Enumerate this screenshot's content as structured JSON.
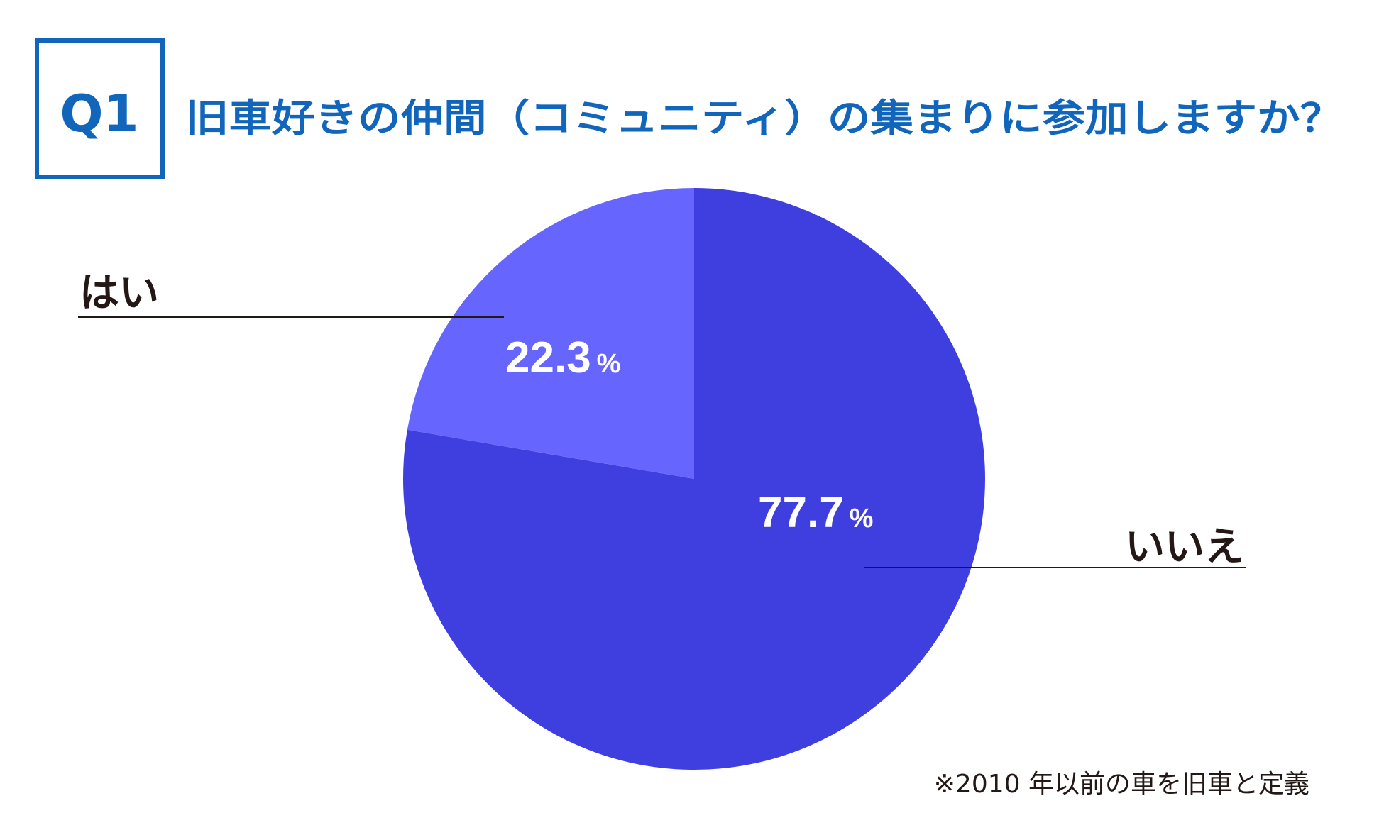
{
  "question": {
    "badge": "Q1",
    "title": "旧車好きの仲間（コミュニティ）の集まりに参加しますか？"
  },
  "note": "※2010 年以前の車を旧車と定義",
  "colors": {
    "accent": "#1166bb",
    "yes": "#6666ff",
    "no": "#3f3fe0",
    "label": "#231815",
    "pct": "#ffffff"
  },
  "chart_data": {
    "type": "pie",
    "title": "旧車好きの仲間（コミュニティ）の集まりに参加しますか？",
    "slices": [
      {
        "label": "はい",
        "value": 22.3,
        "value_text": "22.3",
        "unit": "%"
      },
      {
        "label": "いいえ",
        "value": 77.7,
        "value_text": "77.7",
        "unit": "%"
      }
    ],
    "start_angle": "12 o'clock",
    "direction": "counter-clockwise for はい, remainder clockwise for いいえ"
  }
}
